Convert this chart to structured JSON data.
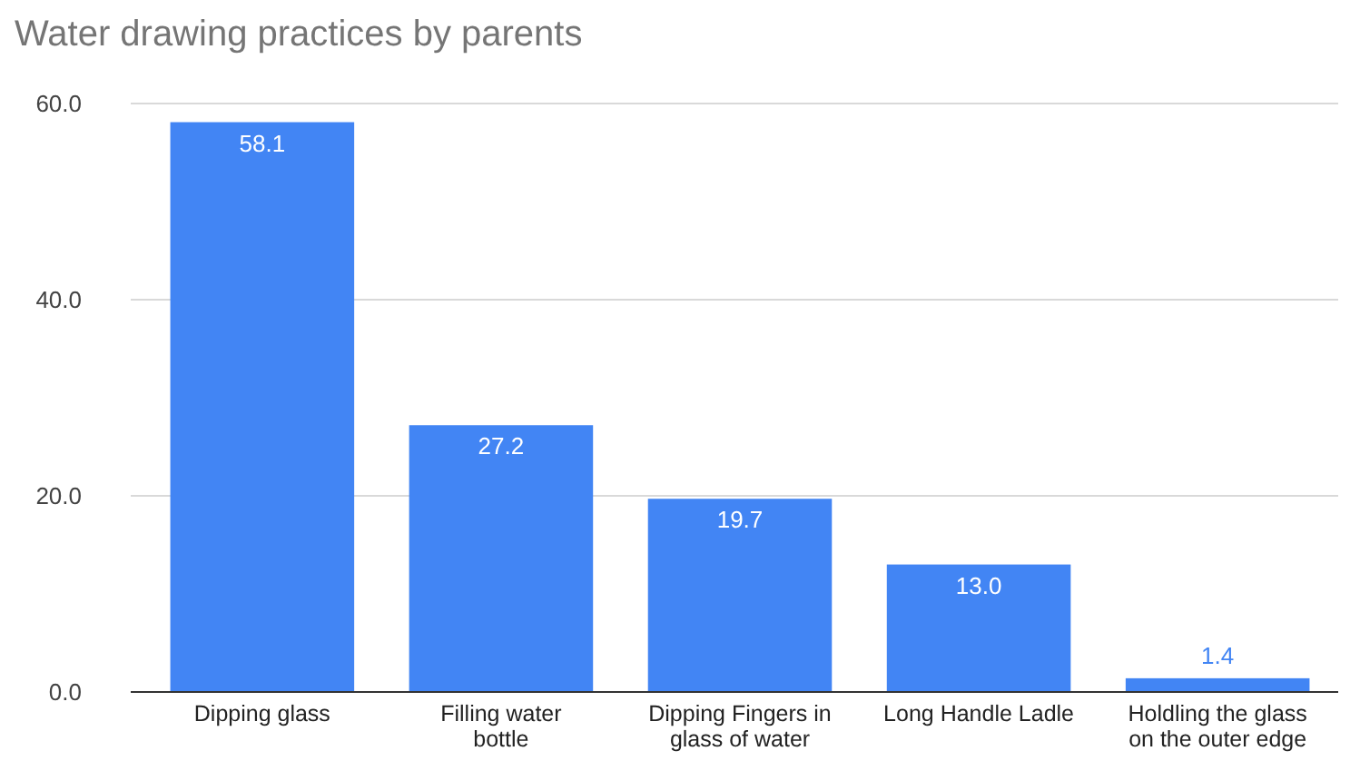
{
  "chart_data": {
    "type": "bar",
    "title": "Water drawing practices by parents",
    "categories": [
      "Dipping glass",
      "Filling water bottle",
      "Dipping Fingers in glass of water",
      "Long Handle Ladle",
      "Holdling the glass on the outer edge"
    ],
    "values": [
      58.1,
      27.2,
      19.7,
      13.0,
      1.4
    ],
    "value_labels": [
      "58.1",
      "27.2",
      "19.7",
      "13.0",
      "1.4"
    ],
    "color": "#4285f4",
    "ylim": [
      0,
      60
    ],
    "yticks": [
      {
        "value": 0,
        "label": "0.0"
      },
      {
        "value": 20,
        "label": "20.0"
      },
      {
        "value": 40,
        "label": "40.0"
      },
      {
        "value": 60,
        "label": "60.0"
      }
    ],
    "grid": "y"
  }
}
